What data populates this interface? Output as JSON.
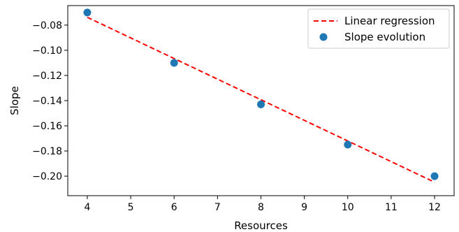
{
  "chart_data": {
    "type": "scatter",
    "title": "",
    "xlabel": "Resources",
    "ylabel": "Slope",
    "xlim": [
      3.55,
      12.45
    ],
    "ylim": [
      -0.2155,
      -0.0645
    ],
    "xticks": [
      4,
      5,
      6,
      7,
      8,
      9,
      10,
      11,
      12
    ],
    "yticks": [
      -0.08,
      -0.1,
      -0.12,
      -0.14,
      -0.16,
      -0.18,
      -0.2
    ],
    "ytick_labels": [
      "−0.08",
      "−0.10",
      "−0.12",
      "−0.14",
      "−0.16",
      "−0.18",
      "−0.20"
    ],
    "grid": false,
    "legend_position": "top-right",
    "series": [
      {
        "name": "Slope evolution",
        "kind": "scatter",
        "color": "#1f77b4",
        "x": [
          4,
          6,
          8,
          10,
          12
        ],
        "y": [
          -0.07,
          -0.11,
          -0.143,
          -0.175,
          -0.2
        ]
      },
      {
        "name": "Linear regression",
        "kind": "line",
        "style": "dashed",
        "color": "#ff0000",
        "x": [
          4,
          12
        ],
        "y": [
          -0.0738,
          -0.2048
        ]
      }
    ]
  }
}
